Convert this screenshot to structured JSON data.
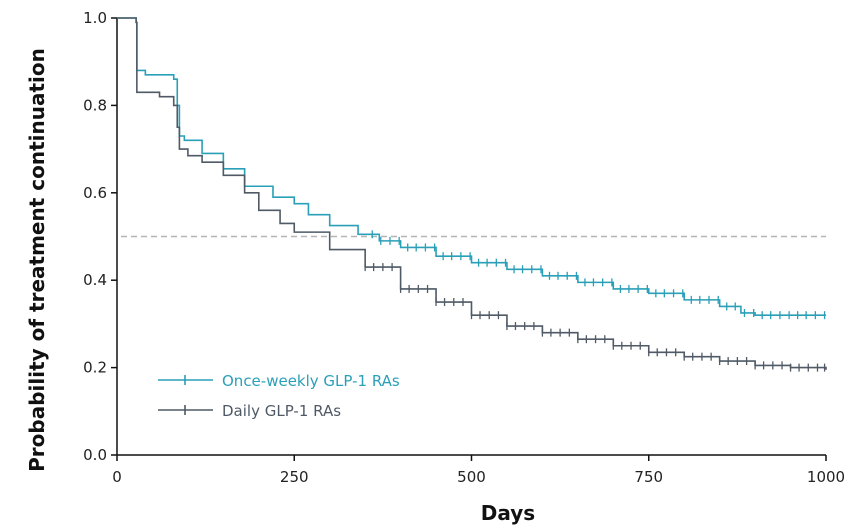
{
  "chart_data": {
    "type": "line",
    "xlabel": "Days",
    "ylabel": "Probability of treatment continuation",
    "xlim": [
      0,
      1000
    ],
    "ylim": [
      0,
      1.0
    ],
    "x_ticks": [
      "0",
      "250",
      "500",
      "750",
      "1000"
    ],
    "y_ticks": [
      "0.0",
      "0.2",
      "0.4",
      "0.6",
      "0.8",
      "1.0"
    ],
    "reference_line": {
      "y": 0.5,
      "style": "dashed"
    },
    "legend_position": "bottom-left",
    "grid": false,
    "series": [
      {
        "name": "Once-weekly GLP-1 RAs",
        "color": "#2a9fb8",
        "points": [
          [
            0,
            1.0
          ],
          [
            25,
            1.0
          ],
          [
            27,
            0.99
          ],
          [
            28,
            0.88
          ],
          [
            38,
            0.88
          ],
          [
            40,
            0.87
          ],
          [
            60,
            0.87
          ],
          [
            80,
            0.86
          ],
          [
            85,
            0.8
          ],
          [
            88,
            0.73
          ],
          [
            95,
            0.72
          ],
          [
            120,
            0.69
          ],
          [
            150,
            0.655
          ],
          [
            180,
            0.615
          ],
          [
            220,
            0.59
          ],
          [
            250,
            0.575
          ],
          [
            270,
            0.55
          ],
          [
            300,
            0.525
          ],
          [
            340,
            0.505
          ],
          [
            370,
            0.49
          ],
          [
            400,
            0.475
          ],
          [
            450,
            0.455
          ],
          [
            500,
            0.44
          ],
          [
            550,
            0.425
          ],
          [
            600,
            0.41
          ],
          [
            650,
            0.395
          ],
          [
            700,
            0.38
          ],
          [
            750,
            0.37
          ],
          [
            800,
            0.355
          ],
          [
            850,
            0.34
          ],
          [
            880,
            0.325
          ],
          [
            900,
            0.32
          ],
          [
            1000,
            0.32
          ]
        ],
        "censor_days": [
          360,
          372,
          385,
          398,
          410,
          422,
          435,
          448,
          460,
          472,
          485,
          498,
          510,
          522,
          535,
          548,
          560,
          572,
          585,
          598,
          610,
          622,
          635,
          648,
          660,
          672,
          685,
          698,
          710,
          722,
          735,
          748,
          760,
          772,
          785,
          798,
          810,
          822,
          835,
          848,
          860,
          872,
          885,
          898,
          910,
          922,
          935,
          948,
          960,
          972,
          985,
          998
        ]
      },
      {
        "name": "Daily GLP-1 RAs",
        "color": "#4f5a66",
        "points": [
          [
            0,
            1.0
          ],
          [
            25,
            1.0
          ],
          [
            27,
            0.99
          ],
          [
            28,
            0.83
          ],
          [
            60,
            0.82
          ],
          [
            80,
            0.8
          ],
          [
            85,
            0.75
          ],
          [
            88,
            0.7
          ],
          [
            100,
            0.685
          ],
          [
            120,
            0.67
          ],
          [
            150,
            0.64
          ],
          [
            180,
            0.6
          ],
          [
            200,
            0.56
          ],
          [
            230,
            0.53
          ],
          [
            250,
            0.51
          ],
          [
            300,
            0.47
          ],
          [
            350,
            0.43
          ],
          [
            400,
            0.38
          ],
          [
            450,
            0.35
          ],
          [
            500,
            0.32
          ],
          [
            550,
            0.295
          ],
          [
            600,
            0.28
          ],
          [
            650,
            0.265
          ],
          [
            700,
            0.25
          ],
          [
            750,
            0.235
          ],
          [
            800,
            0.225
          ],
          [
            850,
            0.215
          ],
          [
            900,
            0.205
          ],
          [
            950,
            0.2
          ],
          [
            1000,
            0.195
          ]
        ],
        "censor_days": [
          350,
          362,
          375,
          388,
          400,
          412,
          425,
          438,
          450,
          462,
          475,
          488,
          500,
          512,
          525,
          538,
          550,
          562,
          575,
          588,
          600,
          612,
          625,
          638,
          650,
          662,
          675,
          688,
          700,
          712,
          725,
          738,
          750,
          762,
          775,
          788,
          800,
          812,
          825,
          838,
          850,
          862,
          875,
          888,
          900,
          912,
          925,
          938,
          950,
          962,
          975,
          988,
          998
        ]
      }
    ]
  }
}
